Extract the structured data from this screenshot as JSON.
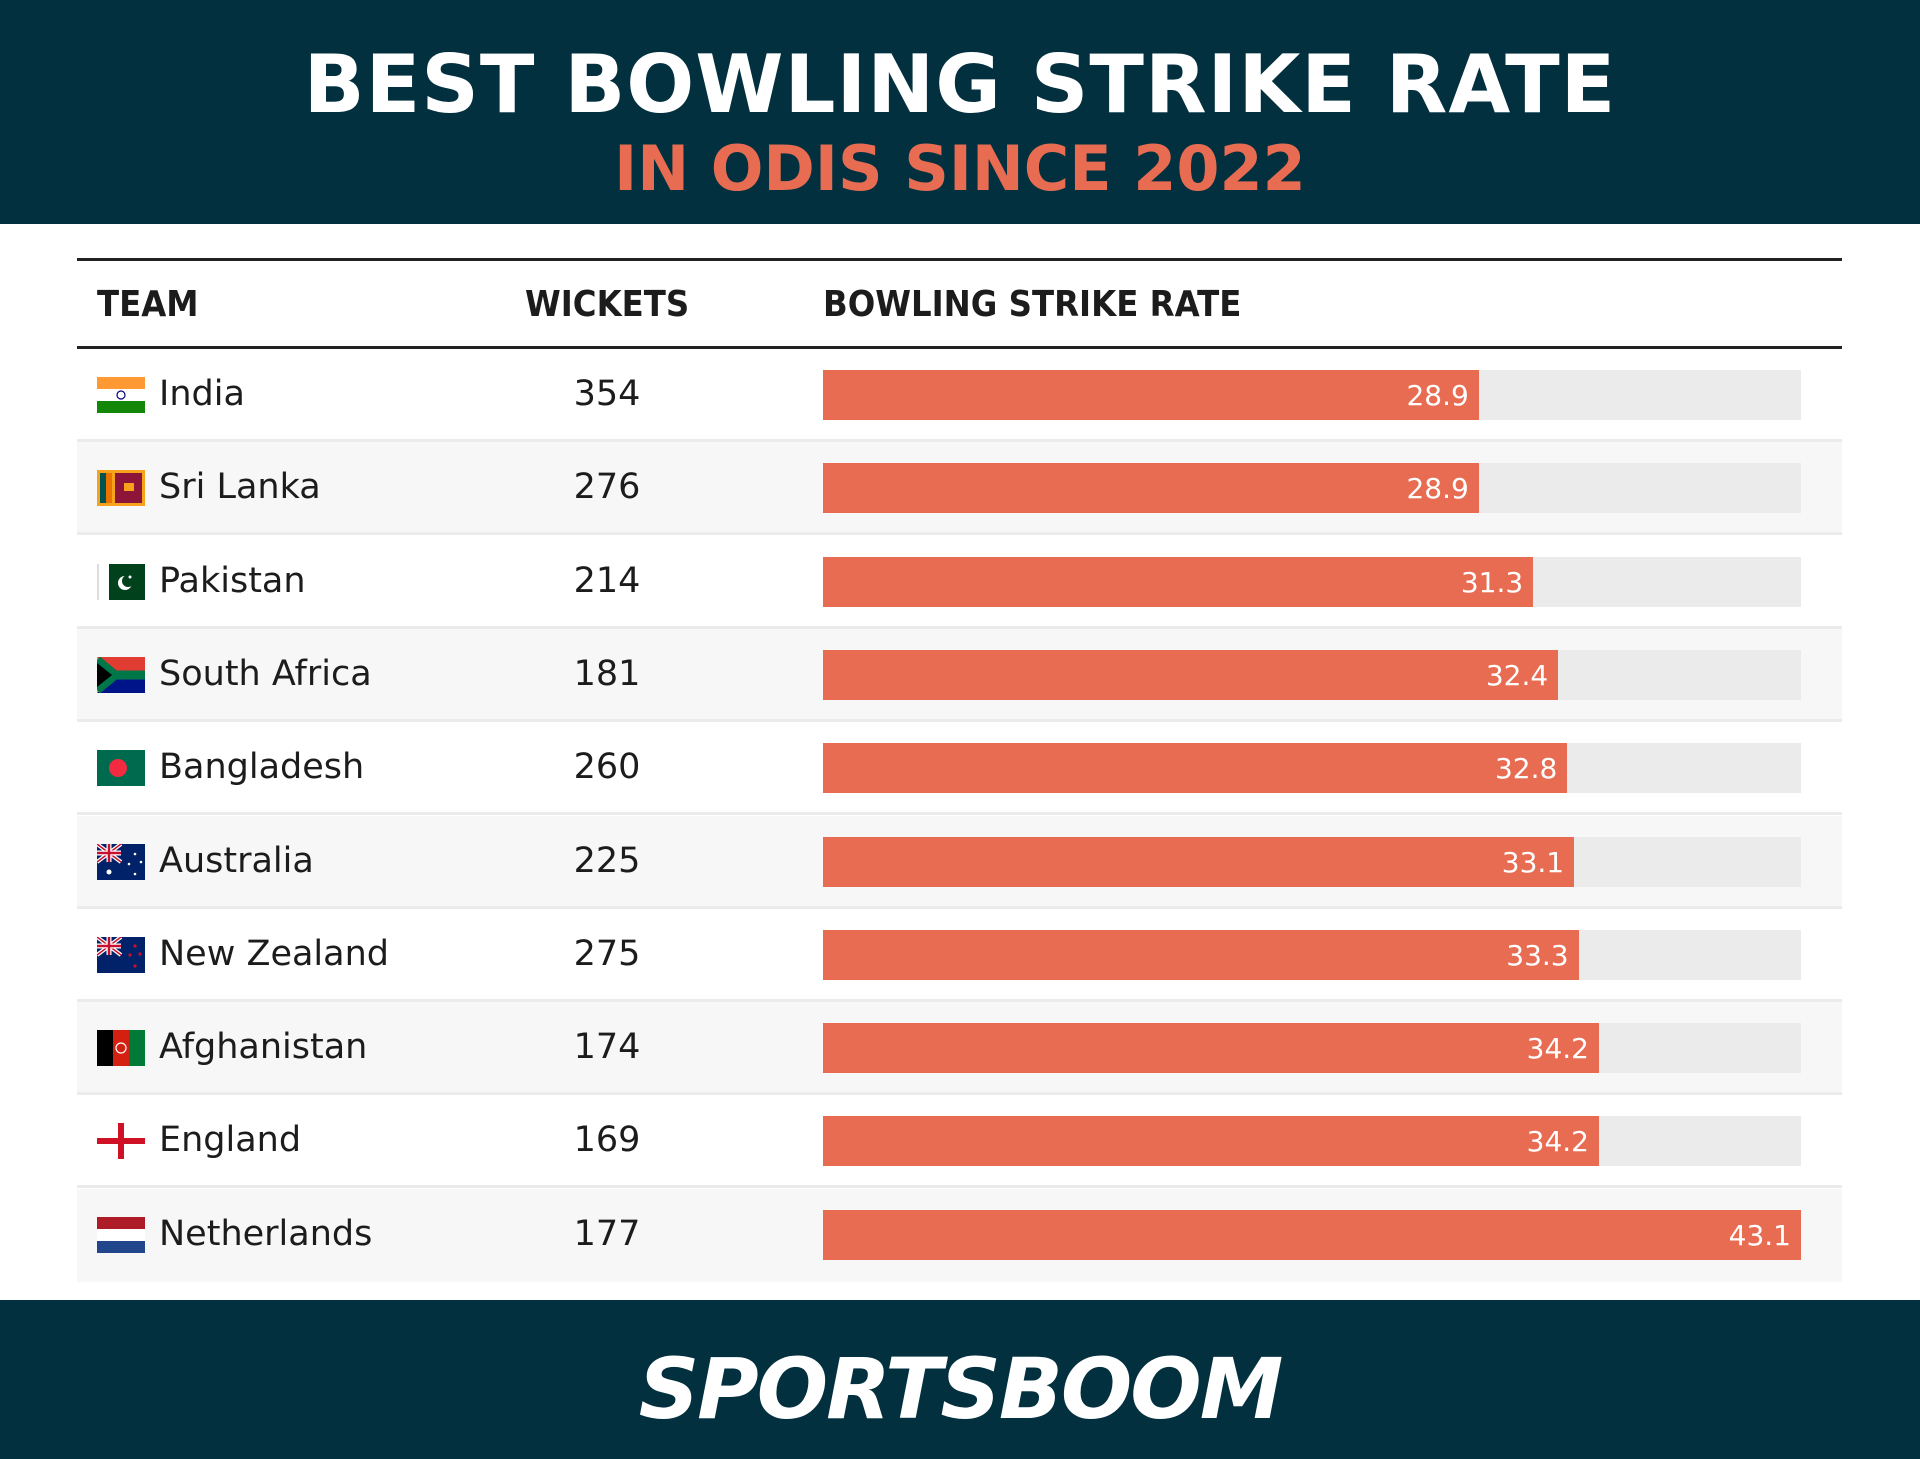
{
  "header": {
    "title": "BEST BOWLING STRIKE RATE",
    "subtitle": "IN ODIS SINCE 2022"
  },
  "footer": {
    "logo": "SPORTSBOOM"
  },
  "colors": {
    "header_bg": "#02303f",
    "accent": "#e86c52",
    "track": "#ebebeb"
  },
  "chart_data": {
    "type": "bar",
    "orientation": "horizontal",
    "columns": [
      "TEAM",
      "WICKETS",
      "BOWLING STRIKE RATE"
    ],
    "xlim": [
      0,
      43.1
    ],
    "rows": [
      {
        "team": "India",
        "flag": "india-flag",
        "wickets": "354",
        "value": 28.9,
        "label": "28.9"
      },
      {
        "team": "Sri Lanka",
        "flag": "sri-lanka-flag",
        "wickets": "276",
        "value": 28.9,
        "label": "28.9"
      },
      {
        "team": "Pakistan",
        "flag": "pakistan-flag",
        "wickets": "214",
        "value": 31.3,
        "label": "31.3"
      },
      {
        "team": "South Africa",
        "flag": "south-africa-flag",
        "wickets": "181",
        "value": 32.4,
        "label": "32.4"
      },
      {
        "team": "Bangladesh",
        "flag": "bangladesh-flag",
        "wickets": "260",
        "value": 32.8,
        "label": "32.8"
      },
      {
        "team": "Australia",
        "flag": "australia-flag",
        "wickets": "225",
        "value": 33.1,
        "label": "33.1"
      },
      {
        "team": "New Zealand",
        "flag": "new-zealand-flag",
        "wickets": "275",
        "value": 33.3,
        "label": "33.3"
      },
      {
        "team": "Afghanistan",
        "flag": "afghanistan-flag",
        "wickets": "174",
        "value": 34.2,
        "label": "34.2"
      },
      {
        "team": "England",
        "flag": "england-flag",
        "wickets": "169",
        "value": 34.2,
        "label": "34.2"
      },
      {
        "team": "Netherlands",
        "flag": "netherlands-flag",
        "wickets": "177",
        "value": 43.1,
        "label": "43.1"
      }
    ]
  }
}
